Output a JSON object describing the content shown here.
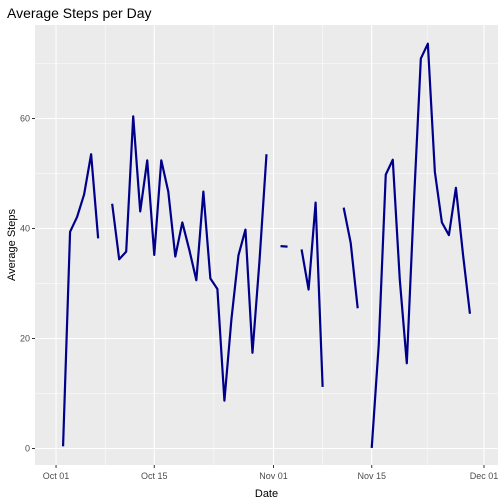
{
  "chart_data": {
    "type": "line",
    "title": "Average Steps per Day",
    "xlabel": "Date",
    "ylabel": "Average Steps",
    "x_axis_type": "date",
    "xlim": [
      "2012-09-28",
      "2012-12-03"
    ],
    "ylim": [
      -3,
      77
    ],
    "x_ticks": [
      {
        "date": "2012-10-01",
        "label": "Oct 01"
      },
      {
        "date": "2012-10-15",
        "label": "Oct 15"
      },
      {
        "date": "2012-11-01",
        "label": "Nov 01"
      },
      {
        "date": "2012-11-15",
        "label": "Nov 15"
      },
      {
        "date": "2012-12-01",
        "label": "Dec 01"
      }
    ],
    "y_ticks": [
      0,
      20,
      40,
      60
    ],
    "grid": true,
    "legend": "none",
    "colors": {
      "line": "#00008B",
      "panel_background": "#EBEBEB",
      "grid_major": "#FFFFFF"
    },
    "series": [
      {
        "x": [
          "2012-10-02",
          "2012-10-03",
          "2012-10-04",
          "2012-10-05",
          "2012-10-06",
          "2012-10-07",
          null,
          "2012-10-09",
          "2012-10-10",
          "2012-10-11",
          "2012-10-12",
          "2012-10-13",
          "2012-10-14",
          "2012-10-15",
          "2012-10-16",
          "2012-10-17",
          "2012-10-18",
          "2012-10-19",
          "2012-10-20",
          "2012-10-21",
          "2012-10-22",
          "2012-10-23",
          "2012-10-24",
          "2012-10-25",
          "2012-10-26",
          "2012-10-27",
          "2012-10-28",
          "2012-10-29",
          "2012-10-30",
          "2012-10-31",
          null,
          "2012-11-02",
          "2012-11-03",
          null,
          "2012-11-05",
          "2012-11-06",
          "2012-11-07",
          "2012-11-08",
          null,
          "2012-11-11",
          "2012-11-12",
          "2012-11-13",
          null,
          "2012-11-15",
          "2012-11-16",
          "2012-11-17",
          "2012-11-18",
          "2012-11-19",
          "2012-11-20",
          "2012-11-21",
          "2012-11-22",
          "2012-11-23",
          "2012-11-24",
          "2012-11-25",
          "2012-11-26",
          "2012-11-27",
          "2012-11-28",
          "2012-11-29"
        ],
        "y": [
          0.4,
          39.4,
          42.1,
          46.2,
          53.5,
          38.2,
          null,
          44.5,
          34.4,
          35.8,
          60.4,
          43.1,
          52.4,
          35.2,
          52.4,
          46.7,
          34.9,
          41.1,
          36.1,
          30.6,
          46.7,
          30.9,
          29.0,
          8.7,
          23.5,
          35.1,
          39.8,
          17.4,
          34.1,
          53.5,
          null,
          36.8,
          36.7,
          null,
          36.2,
          28.9,
          44.7,
          11.2,
          null,
          43.8,
          37.4,
          25.5,
          null,
          0.1,
          18.9,
          49.8,
          52.5,
          30.7,
          15.5,
          44.4,
          70.9,
          73.6,
          50.3,
          41.1,
          38.8,
          47.4,
          35.4,
          24.5
        ]
      }
    ]
  }
}
